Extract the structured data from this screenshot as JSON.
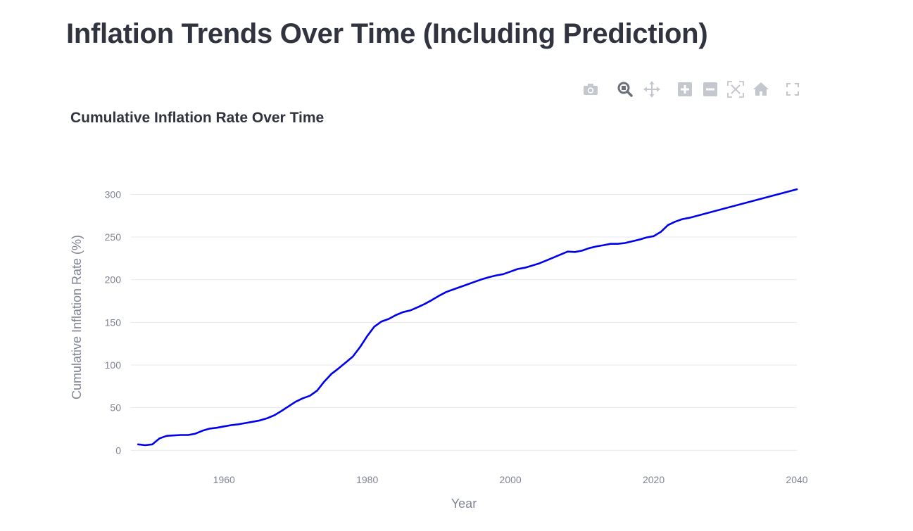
{
  "page": {
    "title": "Inflation Trends Over Time (Including Prediction)"
  },
  "modebar": {
    "buttons": [
      {
        "name": "camera-icon"
      },
      {
        "name": "zoom-icon"
      },
      {
        "name": "pan-icon"
      },
      {
        "name": "zoom-in-icon"
      },
      {
        "name": "zoom-out-icon"
      },
      {
        "name": "autoscale-icon"
      },
      {
        "name": "reset-axes-icon"
      },
      {
        "name": "fullscreen-icon"
      }
    ],
    "color": "#c5c7cf",
    "active_color": "#6d6f7a"
  },
  "chart_data": {
    "type": "line",
    "title": "Cumulative Inflation Rate Over Time",
    "xlabel": "Year",
    "ylabel": "Cumulative Inflation Rate (%)",
    "xlim": [
      1947,
      2040
    ],
    "ylim": [
      -8,
      330
    ],
    "xticks": [
      1960,
      1980,
      2000,
      2020,
      2040
    ],
    "yticks": [
      0,
      50,
      100,
      150,
      200,
      250,
      300
    ],
    "grid": true,
    "line_color": "#0000ee",
    "series": [
      {
        "x": [
          1948,
          1949,
          1950,
          1951,
          1952,
          1953,
          1954,
          1955,
          1956,
          1957,
          1958,
          1959,
          1960,
          1961,
          1962,
          1963,
          1964,
          1965,
          1966,
          1967,
          1968,
          1969,
          1970,
          1971,
          1972,
          1973,
          1974,
          1975,
          1976,
          1977,
          1978,
          1979,
          1980,
          1981,
          1982,
          1983,
          1984,
          1985,
          1986,
          1987,
          1988,
          1989,
          1990,
          1991,
          1992,
          1993,
          1994,
          1995,
          1996,
          1997,
          1998,
          1999,
          2000,
          2001,
          2002,
          2003,
          2004,
          2005,
          2006,
          2007,
          2008,
          2009,
          2010,
          2011,
          2012,
          2013,
          2014,
          2015,
          2016,
          2017,
          2018,
          2019,
          2020,
          2021,
          2022,
          2023,
          2024,
          2025,
          2040
        ],
        "y": [
          7,
          6,
          7,
          14,
          17,
          17.5,
          18,
          18,
          19.5,
          23,
          25.5,
          26.5,
          28,
          29.5,
          30.5,
          32,
          33.5,
          35,
          37.5,
          41,
          46,
          51.5,
          57,
          61,
          64,
          70,
          80.5,
          89.5,
          96,
          103,
          110,
          121,
          134,
          145,
          151,
          154,
          158.5,
          162,
          164,
          167.5,
          171.5,
          176,
          181,
          185.5,
          188.5,
          191.5,
          194.5,
          197.5,
          200.5,
          203,
          205,
          206.5,
          209.5,
          212.5,
          214,
          216.5,
          219,
          222.5,
          226,
          229.5,
          233,
          232.5,
          234,
          237,
          239,
          240.5,
          242,
          242,
          243,
          245,
          247,
          249.5,
          251,
          256,
          264,
          268,
          271,
          272.5,
          306
        ]
      }
    ]
  }
}
